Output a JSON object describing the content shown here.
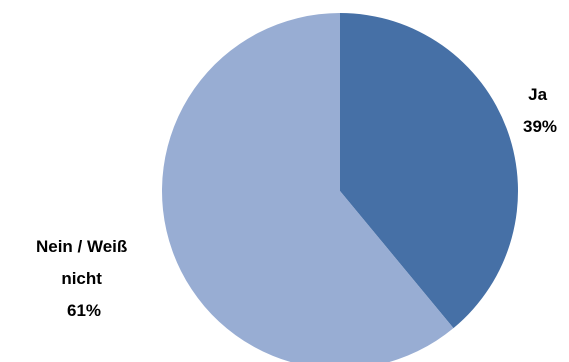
{
  "chart_data": {
    "type": "pie",
    "title": "",
    "slices": [
      {
        "label_lines": [
          "Ja"
        ],
        "value": 39,
        "value_label": "39%",
        "color": "#4670a6"
      },
      {
        "label_lines": [
          "Nein / Weiß",
          "nicht"
        ],
        "value": 61,
        "value_label": "61%",
        "color": "#98add3"
      }
    ],
    "start": "12 o'clock",
    "direction": "clockwise",
    "legend": "none",
    "labels": "outside"
  }
}
